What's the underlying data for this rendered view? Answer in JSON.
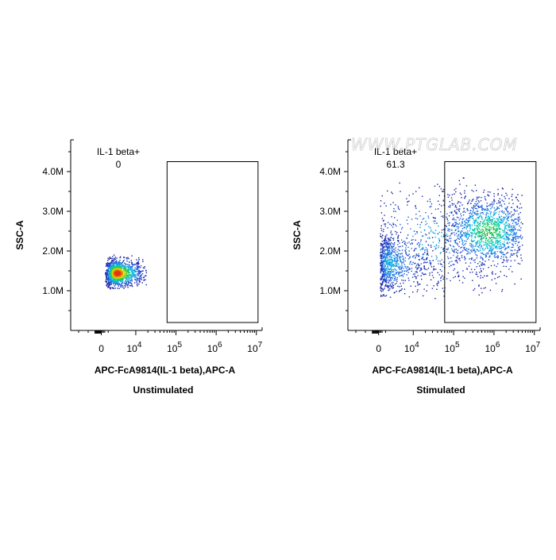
{
  "watermark": "WWW.PTGLAB.COM",
  "chart_data": [
    {
      "type": "scatter",
      "title": "Unstimulated",
      "xlabel": "APC-FcA9814(IL-1 beta),APC-A",
      "ylabel": "SSC-A",
      "xscale": "biexponential",
      "x_tick_labels": [
        "0",
        "10^4",
        "10^5",
        "10^6",
        "10^7"
      ],
      "x_ticks": [
        0,
        10000,
        100000,
        1000000,
        10000000
      ],
      "y_tick_labels": [
        "1.0M",
        "2.0M",
        "3.0M",
        "4.0M"
      ],
      "y_ticks": [
        1000000,
        2000000,
        3000000,
        4000000
      ],
      "ylim": [
        0,
        4800000
      ],
      "density_coloring": "pseudocolor",
      "gate": {
        "type": "rectangle",
        "label": "IL-1 beta+",
        "value": "0",
        "x_range": [
          60000,
          11000000
        ],
        "y_range": [
          200000,
          4250000
        ]
      },
      "populations": [
        {
          "x_center": 4500,
          "x_spread": 0.25,
          "y_center": 1450000,
          "y_spread": 170000,
          "count": 1300,
          "x_clip": [
            1000,
            18000
          ],
          "y_clip": [
            1050000,
            1920000
          ]
        }
      ]
    },
    {
      "type": "scatter",
      "title": "Stimulated",
      "xlabel": "APC-FcA9814(IL-1 beta),APC-A",
      "ylabel": "SSC-A",
      "xscale": "biexponential",
      "x_tick_labels": [
        "0",
        "10^4",
        "10^5",
        "10^6",
        "10^7"
      ],
      "x_ticks": [
        0,
        10000,
        100000,
        1000000,
        10000000
      ],
      "y_tick_labels": [
        "1.0M",
        "2.0M",
        "3.0M",
        "4.0M"
      ],
      "y_ticks": [
        1000000,
        2000000,
        3000000,
        4000000
      ],
      "ylim": [
        0,
        4800000
      ],
      "density_coloring": "pseudocolor",
      "gate": {
        "type": "rectangle",
        "label": "IL-1 beta+",
        "value": "61.3",
        "x_range": [
          60000,
          11000000
        ],
        "y_range": [
          200000,
          4250000
        ]
      },
      "populations": [
        {
          "x_center": 3000,
          "x_spread": 0.45,
          "y_center": 1700000,
          "y_spread": 380000,
          "count": 800,
          "x_clip": [
            300,
            60000
          ],
          "y_clip": [
            850000,
            3000000
          ]
        },
        {
          "x_center": 700000,
          "x_spread": 0.55,
          "y_center": 2500000,
          "y_spread": 480000,
          "count": 1400,
          "x_clip": [
            20000,
            5000000
          ],
          "y_clip": [
            1000000,
            3600000
          ]
        },
        {
          "x_center": 40000,
          "x_spread": 0.9,
          "y_center": 2300000,
          "y_spread": 700000,
          "count": 500,
          "x_clip": [
            300,
            5000000
          ],
          "y_clip": [
            800000,
            3900000
          ]
        }
      ]
    }
  ]
}
